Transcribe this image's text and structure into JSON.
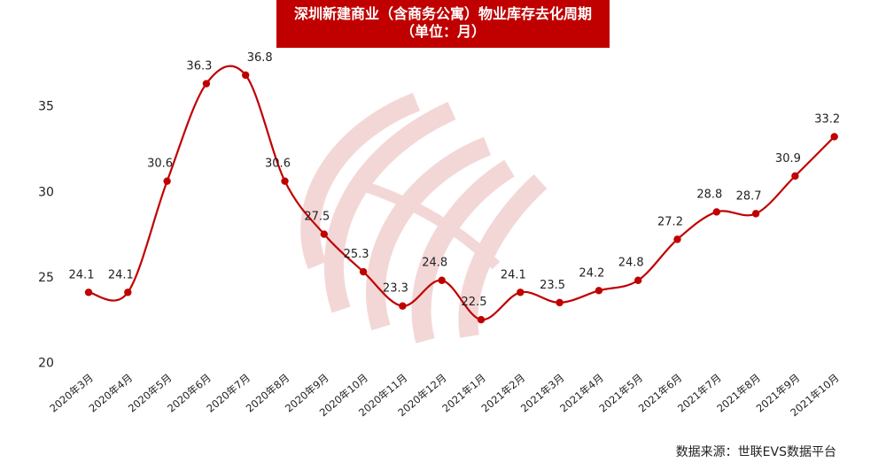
{
  "title": {
    "line1": "深圳新建商业（含商务公寓）物业库存去化周期",
    "line2": "（单位：月）"
  },
  "source": "数据来源：世联EVS数据平台",
  "colors": {
    "accent": "#c00000",
    "line": "#c00000",
    "watermark": "#e8b0b0"
  },
  "chart_data": {
    "type": "line",
    "title": "深圳新建商业（含商务公寓）物业库存去化周期（单位：月）",
    "xlabel": "",
    "ylabel": "",
    "ylim": [
      20,
      37
    ],
    "yticks": [
      20,
      25,
      30,
      35
    ],
    "grid": false,
    "legend": "none",
    "categories": [
      "2020年3月",
      "2020年4月",
      "2020年5月",
      "2020年6月",
      "2020年7月",
      "2020年8月",
      "2020年9月",
      "2020年10月",
      "2020年11月",
      "2020年12月",
      "2021年1月",
      "2021年2月",
      "2021年3月",
      "2021年4月",
      "2021年5月",
      "2021年6月",
      "2021年7月",
      "2021年8月",
      "2021年9月",
      "2021年10月"
    ],
    "series": [
      {
        "values": [
          24.1,
          24.1,
          30.6,
          36.3,
          36.8,
          30.6,
          27.5,
          25.3,
          23.3,
          24.8,
          22.5,
          24.1,
          23.5,
          24.2,
          24.8,
          27.2,
          28.8,
          28.7,
          30.9,
          33.2
        ]
      }
    ]
  }
}
